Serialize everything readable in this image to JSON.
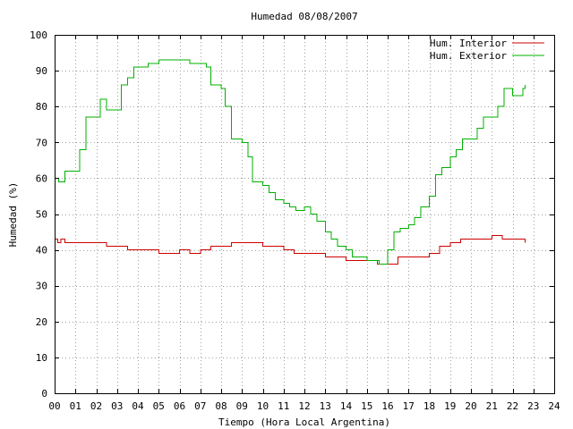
{
  "chart_data": {
    "type": "line",
    "title": "Humedad 08/08/2007",
    "xlabel": "Tiempo (Hora Local Argentina)",
    "ylabel": "Humedad (%)",
    "xlim": [
      0,
      24
    ],
    "ylim": [
      0,
      100
    ],
    "x_ticks": [
      "00",
      "01",
      "02",
      "03",
      "04",
      "05",
      "06",
      "07",
      "08",
      "09",
      "10",
      "11",
      "12",
      "13",
      "14",
      "15",
      "16",
      "17",
      "18",
      "19",
      "20",
      "21",
      "22",
      "23",
      "24"
    ],
    "y_ticks": [
      0,
      10,
      20,
      30,
      40,
      50,
      60,
      70,
      80,
      90,
      100
    ],
    "grid": true,
    "legend_position": "top-right",
    "series": [
      {
        "name": "Hum. Interior",
        "color": "#cc0000",
        "points": [
          [
            0.0,
            43
          ],
          [
            0.15,
            42
          ],
          [
            0.3,
            43
          ],
          [
            0.5,
            42
          ],
          [
            1.0,
            42
          ],
          [
            1.5,
            42
          ],
          [
            2.0,
            42
          ],
          [
            2.5,
            41
          ],
          [
            3.0,
            41
          ],
          [
            3.5,
            40
          ],
          [
            4.0,
            40
          ],
          [
            4.5,
            40
          ],
          [
            5.0,
            39
          ],
          [
            5.5,
            39
          ],
          [
            6.0,
            40
          ],
          [
            6.5,
            39
          ],
          [
            7.0,
            40
          ],
          [
            7.5,
            41
          ],
          [
            8.0,
            41
          ],
          [
            8.5,
            42
          ],
          [
            9.0,
            42
          ],
          [
            9.5,
            42
          ],
          [
            10.0,
            41
          ],
          [
            10.5,
            41
          ],
          [
            11.0,
            40
          ],
          [
            11.5,
            39
          ],
          [
            12.0,
            39
          ],
          [
            12.5,
            39
          ],
          [
            13.0,
            38
          ],
          [
            13.5,
            38
          ],
          [
            14.0,
            37
          ],
          [
            14.5,
            37
          ],
          [
            15.0,
            37
          ],
          [
            15.5,
            36
          ],
          [
            16.0,
            36
          ],
          [
            16.5,
            38
          ],
          [
            17.0,
            38
          ],
          [
            17.5,
            38
          ],
          [
            18.0,
            39
          ],
          [
            18.5,
            41
          ],
          [
            19.0,
            42
          ],
          [
            19.5,
            43
          ],
          [
            20.0,
            43
          ],
          [
            20.5,
            43
          ],
          [
            21.0,
            44
          ],
          [
            21.5,
            43
          ],
          [
            22.0,
            43
          ],
          [
            22.5,
            43
          ],
          [
            22.6,
            42
          ]
        ]
      },
      {
        "name": "Hum. Exterior",
        "color": "#00b000",
        "points": [
          [
            0.0,
            60
          ],
          [
            0.2,
            59
          ],
          [
            0.5,
            62
          ],
          [
            1.0,
            62
          ],
          [
            1.2,
            68
          ],
          [
            1.5,
            77
          ],
          [
            2.0,
            77
          ],
          [
            2.2,
            82
          ],
          [
            2.5,
            79
          ],
          [
            3.0,
            79
          ],
          [
            3.2,
            86
          ],
          [
            3.5,
            88
          ],
          [
            3.8,
            91
          ],
          [
            4.2,
            91
          ],
          [
            4.5,
            92
          ],
          [
            4.8,
            92
          ],
          [
            5.0,
            93
          ],
          [
            5.5,
            93
          ],
          [
            6.0,
            93
          ],
          [
            6.5,
            92
          ],
          [
            7.0,
            92
          ],
          [
            7.3,
            91
          ],
          [
            7.5,
            86
          ],
          [
            8.0,
            85
          ],
          [
            8.2,
            80
          ],
          [
            8.5,
            71
          ],
          [
            9.0,
            70
          ],
          [
            9.3,
            66
          ],
          [
            9.5,
            59
          ],
          [
            10.0,
            58
          ],
          [
            10.3,
            56
          ],
          [
            10.6,
            54
          ],
          [
            11.0,
            53
          ],
          [
            11.3,
            52
          ],
          [
            11.6,
            51
          ],
          [
            12.0,
            52
          ],
          [
            12.3,
            50
          ],
          [
            12.6,
            48
          ],
          [
            13.0,
            45
          ],
          [
            13.3,
            43
          ],
          [
            13.6,
            41
          ],
          [
            14.0,
            40
          ],
          [
            14.3,
            38
          ],
          [
            14.6,
            38
          ],
          [
            15.0,
            37
          ],
          [
            15.3,
            37
          ],
          [
            15.6,
            36
          ],
          [
            16.0,
            40
          ],
          [
            16.3,
            45
          ],
          [
            16.6,
            46
          ],
          [
            17.0,
            47
          ],
          [
            17.3,
            49
          ],
          [
            17.6,
            52
          ],
          [
            18.0,
            55
          ],
          [
            18.3,
            61
          ],
          [
            18.6,
            63
          ],
          [
            19.0,
            66
          ],
          [
            19.3,
            68
          ],
          [
            19.6,
            71
          ],
          [
            20.0,
            71
          ],
          [
            20.3,
            74
          ],
          [
            20.6,
            77
          ],
          [
            21.0,
            77
          ],
          [
            21.3,
            80
          ],
          [
            21.6,
            85
          ],
          [
            22.0,
            83
          ],
          [
            22.3,
            83
          ],
          [
            22.5,
            85
          ],
          [
            22.6,
            86
          ]
        ]
      }
    ]
  }
}
